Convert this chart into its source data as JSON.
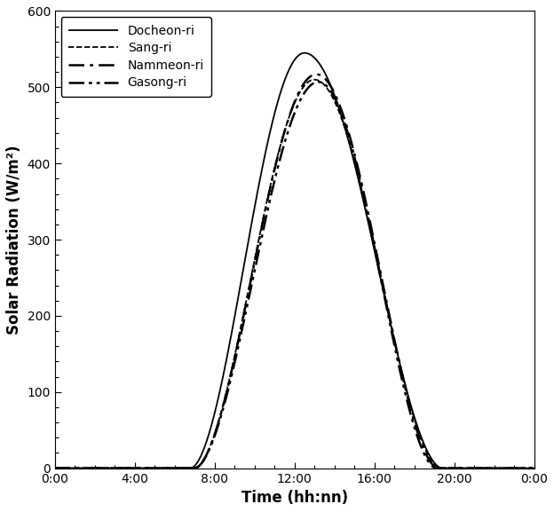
{
  "title": "",
  "xlabel": "Time (hh:nn)",
  "ylabel": "Solar Radiation (W/m²)",
  "xlim": [
    0,
    24
  ],
  "ylim": [
    0,
    600
  ],
  "yticks": [
    0,
    100,
    200,
    300,
    400,
    500,
    600
  ],
  "xticks": [
    0,
    4,
    8,
    12,
    16,
    20,
    24
  ],
  "xtick_labels": [
    "0:00",
    "4:00",
    "8:00",
    "12:00",
    "16:00",
    "20:00",
    "0:00"
  ],
  "series": [
    {
      "label": "Docheon-ri",
      "linestyle": "solid",
      "linewidth": 1.3,
      "color": "#000000",
      "peak_hour": 12.5,
      "peak_value": 545,
      "rise_start": 6.8,
      "fall_end": 19.4,
      "skew": 0.0
    },
    {
      "label": "Sang-ri",
      "linestyle": "densely_dashed",
      "linewidth": 1.3,
      "color": "#000000",
      "peak_hour": 13.0,
      "peak_value": 510,
      "rise_start": 7.0,
      "fall_end": 19.3,
      "skew": 0.0
    },
    {
      "label": "Nammeon-ri",
      "linestyle": "dashdot",
      "linewidth": 1.8,
      "color": "#000000",
      "peak_hour": 13.1,
      "peak_value": 517,
      "rise_start": 7.0,
      "fall_end": 19.2,
      "skew": 0.0
    },
    {
      "label": "Gasong-ri",
      "linestyle": "dashdotdot",
      "linewidth": 1.8,
      "color": "#000000",
      "peak_hour": 13.2,
      "peak_value": 507,
      "rise_start": 7.0,
      "fall_end": 19.1,
      "skew": 0.0
    }
  ],
  "legend_fontsize": 10,
  "axis_fontsize": 12,
  "tick_fontsize": 10,
  "background_color": "#ffffff",
  "fig_width": 6.24,
  "fig_height": 5.77,
  "dpi": 100
}
